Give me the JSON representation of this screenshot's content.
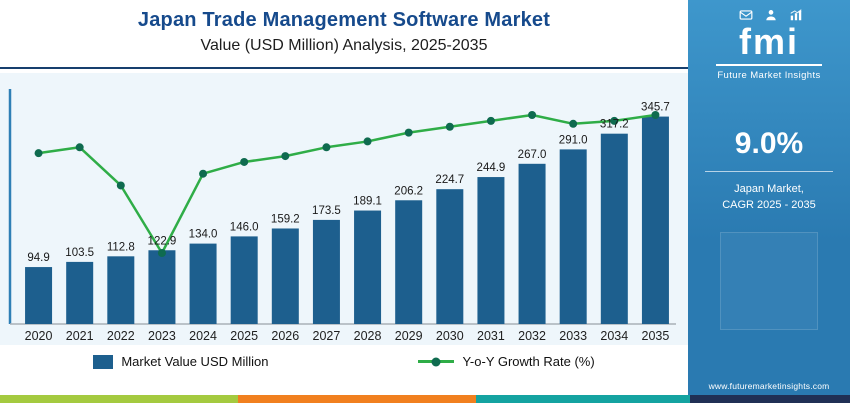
{
  "header": {
    "title": "Japan Trade Management Software Market",
    "subtitle": "Value (USD Million) Analysis, 2025-2035"
  },
  "chart_data": {
    "type": "bar+line",
    "title": "Japan Trade Management Software Market",
    "subtitle": "Value (USD Million) Analysis, 2025-2035",
    "categories": [
      "2020",
      "2021",
      "2022",
      "2023",
      "2024",
      "2025",
      "2026",
      "2027",
      "2028",
      "2029",
      "2030",
      "2031",
      "2032",
      "2033",
      "2034",
      "2035"
    ],
    "series": [
      {
        "name": "Market Value USD Million",
        "type": "bar",
        "color": "#1d5f8e",
        "values": [
          94.9,
          103.5,
          112.8,
          122.9,
          134.0,
          146.0,
          159.2,
          173.5,
          189.1,
          206.2,
          224.7,
          244.9,
          267.0,
          291.0,
          317.2,
          345.7
        ]
      },
      {
        "name": "Y-o-Y Growth Rate (%)",
        "type": "line",
        "color": "#2fad47",
        "marker_color": "#0f6b4f",
        "values_estimated": [
          9.1,
          9.2,
          8.55,
          7.4,
          8.75,
          8.95,
          9.05,
          9.2,
          9.3,
          9.45,
          9.55,
          9.65,
          9.75,
          9.6,
          9.65,
          9.75
        ]
      }
    ],
    "xlabel": "",
    "ylabel": "",
    "value_labels": "shown above bars, one decimal",
    "legend_position": "bottom",
    "axis_color_y": "#2e7fb5",
    "axis_color_x": "#a9b0b7"
  },
  "sidebar": {
    "logo_text": "fmi",
    "logo_tagline": "Future Market Insights",
    "stat_value": "9.0%",
    "stat_caption_line1": "Japan Market,",
    "stat_caption_line2": "CAGR 2025 - 2035",
    "website": "www.futuremarketinsights.com",
    "bg_top": "#3e97cc",
    "bg_bottom": "#2a7ab1"
  },
  "footer": {
    "stripe_colors": [
      "#a4ca3f",
      "#f1801f",
      "#14a3a1",
      "#203055"
    ]
  }
}
